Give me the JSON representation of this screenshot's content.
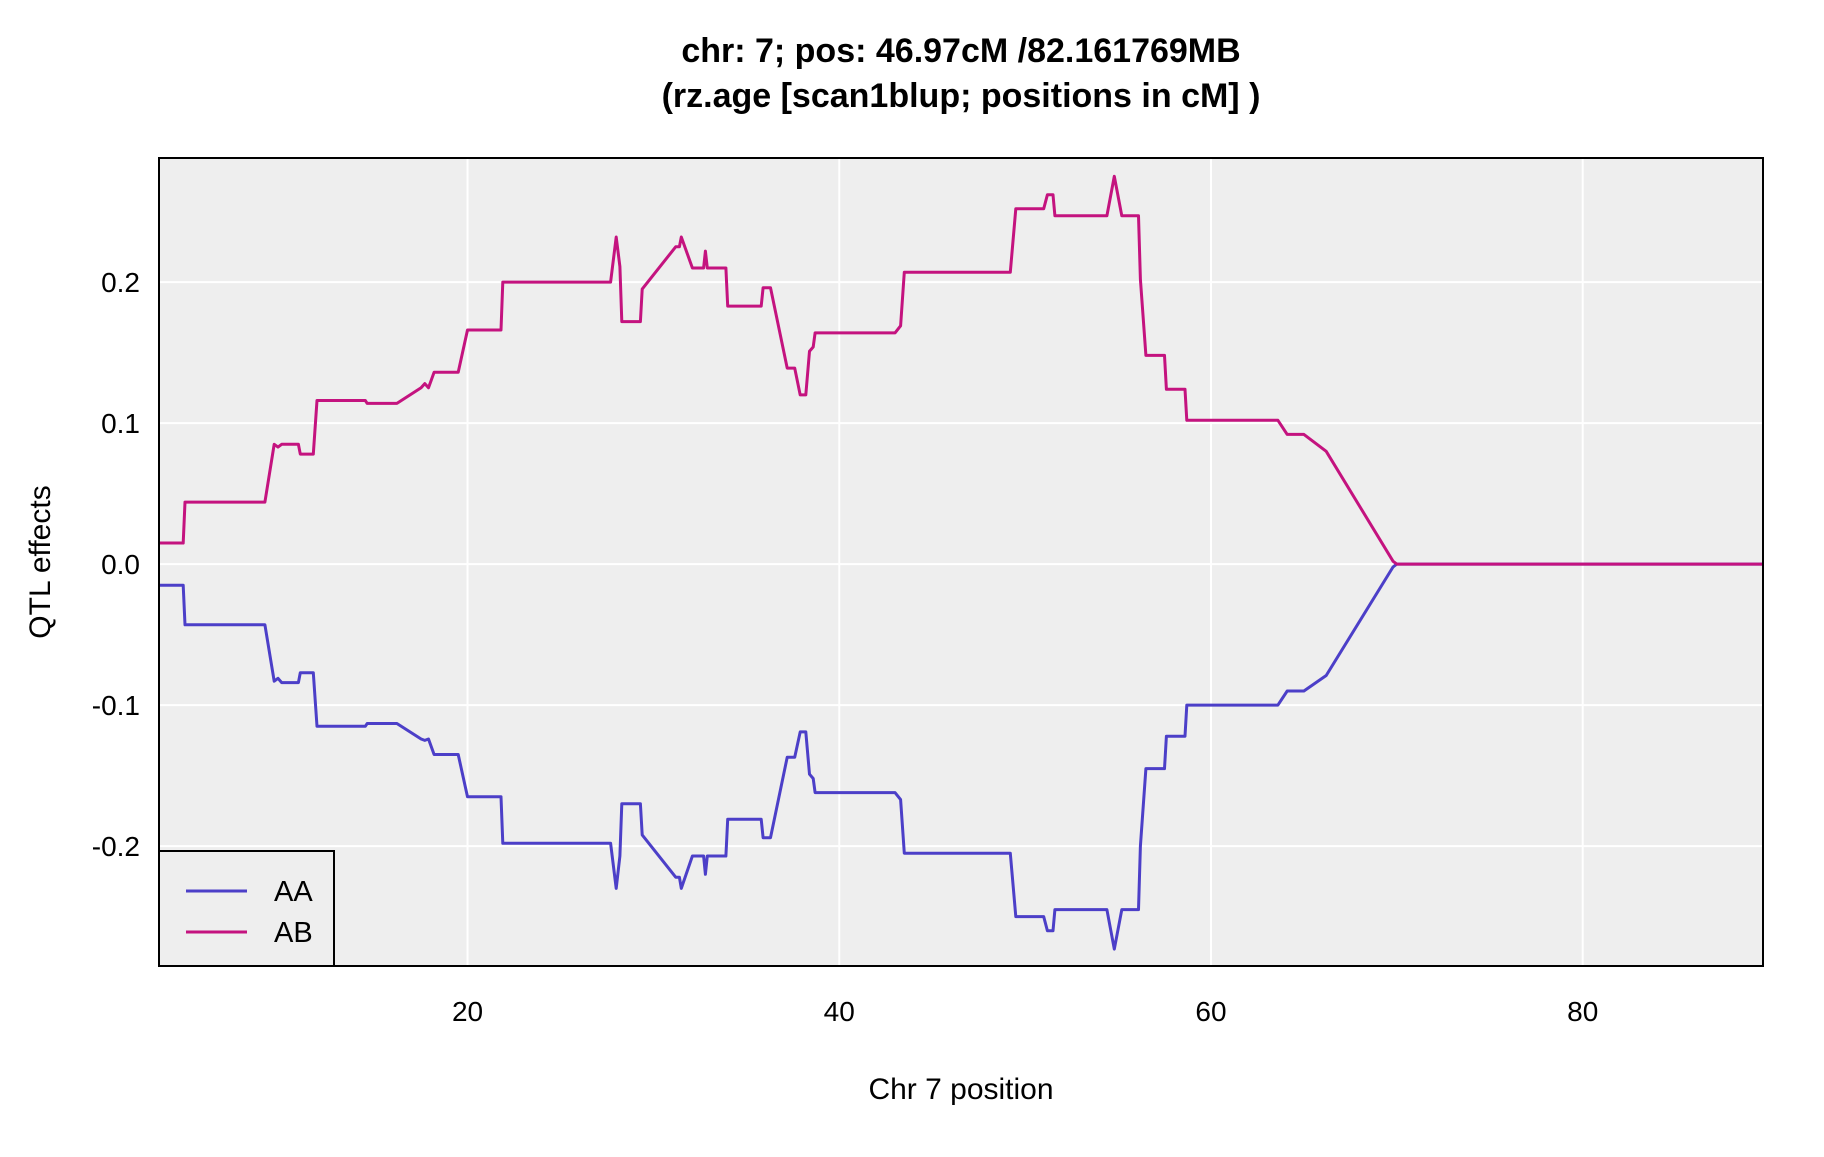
{
  "chart_data": {
    "type": "line",
    "title": [
      "chr: 7; pos: 46.97cM /82.161769MB",
      "(rz.age [scan1blup; positions in cM] )"
    ],
    "xlabel": "Chr 7 position",
    "ylabel": "QTL effects",
    "xlim": [
      3.4,
      89.7
    ],
    "ylim": [
      -0.285,
      0.288
    ],
    "x_ticks": [
      20,
      40,
      60,
      80
    ],
    "x_tick_labels": [
      "20",
      "40",
      "60",
      "80"
    ],
    "y_ticks": [
      -0.2,
      -0.1,
      0.0,
      0.1,
      0.2
    ],
    "y_tick_labels": [
      "-0.2",
      "-0.1",
      "0.0",
      "0.1",
      "0.2"
    ],
    "grid": true,
    "background": "#eeeeee",
    "legend_position": "bottom-left",
    "series": [
      {
        "name": "AA",
        "color": "#4c3fc8",
        "points": [
          [
            3.4,
            -0.015
          ],
          [
            4.7,
            -0.015
          ],
          [
            4.8,
            -0.043
          ],
          [
            9.1,
            -0.043
          ],
          [
            9.6,
            -0.083
          ],
          [
            9.8,
            -0.081
          ],
          [
            10.0,
            -0.084
          ],
          [
            10.9,
            -0.084
          ],
          [
            11.0,
            -0.077
          ],
          [
            11.7,
            -0.077
          ],
          [
            11.9,
            -0.115
          ],
          [
            14.5,
            -0.115
          ],
          [
            14.6,
            -0.113
          ],
          [
            16.2,
            -0.113
          ],
          [
            17.5,
            -0.124
          ],
          [
            17.7,
            -0.125
          ],
          [
            17.9,
            -0.124
          ],
          [
            18.2,
            -0.135
          ],
          [
            19.5,
            -0.135
          ],
          [
            20.0,
            -0.165
          ],
          [
            21.8,
            -0.165
          ],
          [
            21.9,
            -0.198
          ],
          [
            27.7,
            -0.198
          ],
          [
            28.0,
            -0.23
          ],
          [
            28.2,
            -0.207
          ],
          [
            28.3,
            -0.17
          ],
          [
            29.3,
            -0.17
          ],
          [
            29.4,
            -0.192
          ],
          [
            31.2,
            -0.222
          ],
          [
            31.4,
            -0.222
          ],
          [
            31.5,
            -0.23
          ],
          [
            32.1,
            -0.207
          ],
          [
            32.7,
            -0.207
          ],
          [
            32.8,
            -0.22
          ],
          [
            32.9,
            -0.207
          ],
          [
            33.9,
            -0.207
          ],
          [
            34.0,
            -0.181
          ],
          [
            35.8,
            -0.181
          ],
          [
            35.9,
            -0.194
          ],
          [
            36.3,
            -0.194
          ],
          [
            37.2,
            -0.137
          ],
          [
            37.6,
            -0.137
          ],
          [
            37.9,
            -0.119
          ],
          [
            38.2,
            -0.119
          ],
          [
            38.4,
            -0.149
          ],
          [
            38.6,
            -0.152
          ],
          [
            38.7,
            -0.162
          ],
          [
            43.0,
            -0.162
          ],
          [
            43.3,
            -0.167
          ],
          [
            43.5,
            -0.205
          ],
          [
            49.2,
            -0.205
          ],
          [
            49.5,
            -0.25
          ],
          [
            51.0,
            -0.25
          ],
          [
            51.2,
            -0.26
          ],
          [
            51.5,
            -0.26
          ],
          [
            51.6,
            -0.245
          ],
          [
            54.4,
            -0.245
          ],
          [
            54.8,
            -0.273
          ],
          [
            55.2,
            -0.245
          ],
          [
            56.1,
            -0.245
          ],
          [
            56.2,
            -0.2
          ],
          [
            56.5,
            -0.145
          ],
          [
            57.5,
            -0.145
          ],
          [
            57.6,
            -0.122
          ],
          [
            58.6,
            -0.122
          ],
          [
            58.7,
            -0.1
          ],
          [
            62.0,
            -0.1
          ],
          [
            63.6,
            -0.1
          ],
          [
            64.1,
            -0.09
          ],
          [
            65.0,
            -0.09
          ],
          [
            66.2,
            -0.079
          ],
          [
            69.8,
            -0.002
          ],
          [
            70.0,
            0.0
          ],
          [
            89.7,
            0.0
          ]
        ]
      },
      {
        "name": "AB",
        "color": "#c4137f",
        "points": [
          [
            3.4,
            0.015
          ],
          [
            4.7,
            0.015
          ],
          [
            4.8,
            0.044
          ],
          [
            9.1,
            0.044
          ],
          [
            9.6,
            0.085
          ],
          [
            9.8,
            0.083
          ],
          [
            10.0,
            0.085
          ],
          [
            10.9,
            0.085
          ],
          [
            11.0,
            0.078
          ],
          [
            11.7,
            0.078
          ],
          [
            11.9,
            0.116
          ],
          [
            14.5,
            0.116
          ],
          [
            14.6,
            0.114
          ],
          [
            16.2,
            0.114
          ],
          [
            17.5,
            0.125
          ],
          [
            17.7,
            0.128
          ],
          [
            17.9,
            0.125
          ],
          [
            18.2,
            0.136
          ],
          [
            19.5,
            0.136
          ],
          [
            20.0,
            0.166
          ],
          [
            21.8,
            0.166
          ],
          [
            21.9,
            0.2
          ],
          [
            27.7,
            0.2
          ],
          [
            28.0,
            0.232
          ],
          [
            28.2,
            0.211
          ],
          [
            28.3,
            0.172
          ],
          [
            29.3,
            0.172
          ],
          [
            29.4,
            0.195
          ],
          [
            31.2,
            0.225
          ],
          [
            31.4,
            0.225
          ],
          [
            31.5,
            0.232
          ],
          [
            32.1,
            0.21
          ],
          [
            32.7,
            0.21
          ],
          [
            32.8,
            0.222
          ],
          [
            32.9,
            0.21
          ],
          [
            33.9,
            0.21
          ],
          [
            34.0,
            0.183
          ],
          [
            35.8,
            0.183
          ],
          [
            35.9,
            0.196
          ],
          [
            36.3,
            0.196
          ],
          [
            37.2,
            0.139
          ],
          [
            37.6,
            0.139
          ],
          [
            37.9,
            0.12
          ],
          [
            38.2,
            0.12
          ],
          [
            38.4,
            0.151
          ],
          [
            38.6,
            0.154
          ],
          [
            38.7,
            0.164
          ],
          [
            43.0,
            0.164
          ],
          [
            43.3,
            0.169
          ],
          [
            43.5,
            0.207
          ],
          [
            49.2,
            0.207
          ],
          [
            49.5,
            0.252
          ],
          [
            51.0,
            0.252
          ],
          [
            51.2,
            0.262
          ],
          [
            51.5,
            0.262
          ],
          [
            51.6,
            0.247
          ],
          [
            54.4,
            0.247
          ],
          [
            54.8,
            0.275
          ],
          [
            55.2,
            0.247
          ],
          [
            56.1,
            0.247
          ],
          [
            56.2,
            0.202
          ],
          [
            56.5,
            0.148
          ],
          [
            57.5,
            0.148
          ],
          [
            57.6,
            0.124
          ],
          [
            58.6,
            0.124
          ],
          [
            58.7,
            0.102
          ],
          [
            62.0,
            0.102
          ],
          [
            63.6,
            0.102
          ],
          [
            64.1,
            0.092
          ],
          [
            65.0,
            0.092
          ],
          [
            66.2,
            0.08
          ],
          [
            69.8,
            0.002
          ],
          [
            70.0,
            0.0
          ],
          [
            89.7,
            0.0
          ]
        ]
      }
    ]
  }
}
